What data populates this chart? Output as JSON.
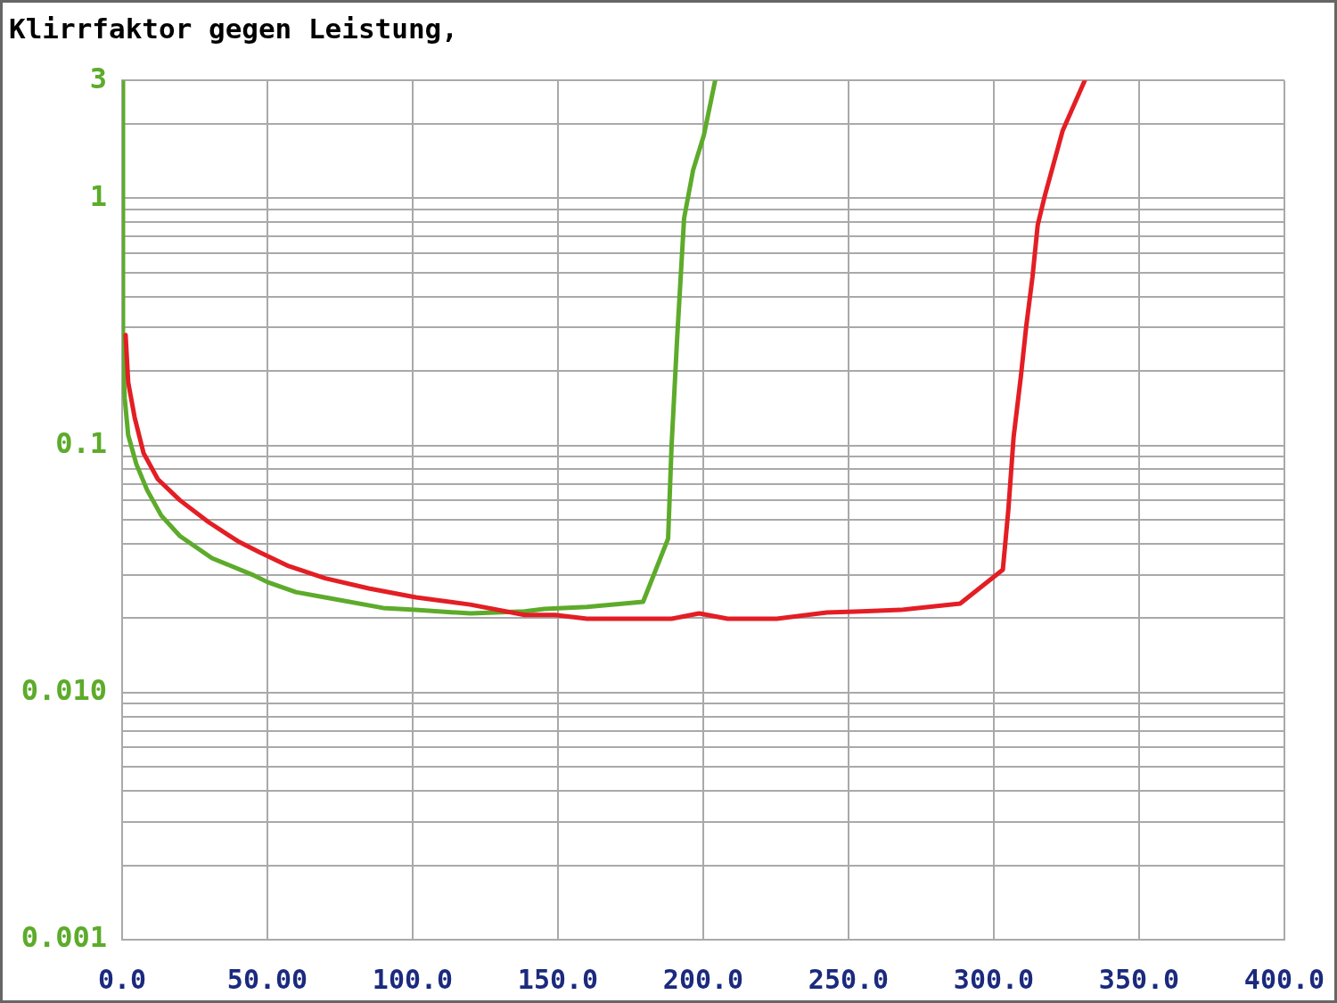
{
  "chart_data": {
    "type": "line",
    "title": "Klirrfaktor gegen Leistung,",
    "xlim": [
      0,
      400
    ],
    "xticks": [
      {
        "value": 0,
        "label": "0.0"
      },
      {
        "value": 50,
        "label": "50.00"
      },
      {
        "value": 100,
        "label": "100.0"
      },
      {
        "value": 150,
        "label": "150.0"
      },
      {
        "value": 200,
        "label": "200.0"
      },
      {
        "value": 250,
        "label": "250.0"
      },
      {
        "value": 300,
        "label": "300.0"
      },
      {
        "value": 350,
        "label": "350.0"
      },
      {
        "value": 400,
        "label": "400.0"
      }
    ],
    "ylim": [
      0.001,
      3
    ],
    "yticks": [
      0.001,
      {
        "value": 0.002,
        "label": null
      },
      {
        "value": 0.003,
        "label": null
      },
      {
        "value": 0.004,
        "label": null
      },
      {
        "value": 0.005,
        "label": null
      },
      {
        "value": 0.006,
        "label": null
      },
      {
        "value": 0.007,
        "label": null
      },
      {
        "value": 0.008,
        "label": null
      },
      {
        "value": 0.009,
        "label": null
      },
      {
        "value": 0.01,
        "label": "0.010"
      },
      {
        "value": 0.02,
        "label": null
      },
      {
        "value": 0.03,
        "label": null
      },
      {
        "value": 0.04,
        "label": null
      },
      {
        "value": 0.05,
        "label": null
      },
      {
        "value": 0.06,
        "label": null
      },
      {
        "value": 0.07,
        "label": null
      },
      {
        "value": 0.08,
        "label": null
      },
      {
        "value": 0.09,
        "label": null
      },
      0.1,
      {
        "value": 0.2,
        "label": null
      },
      {
        "value": 0.3,
        "label": null
      },
      {
        "value": 0.4,
        "label": null
      },
      {
        "value": 0.5,
        "label": null
      },
      {
        "value": 0.6,
        "label": null
      },
      {
        "value": 0.7,
        "label": null
      },
      {
        "value": 0.8,
        "label": null
      },
      {
        "value": 0.9,
        "label": null
      },
      1,
      {
        "value": 2,
        "label": null
      },
      3
    ],
    "log": "y",
    "grid": true,
    "marker": "none",
    "line_style": "solid",
    "series": [
      {
        "color": "#5dab2b",
        "x": [
          0,
          0.3,
          0.9,
          2.1,
          4.9,
          8.6,
          13.5,
          19.9,
          30.9,
          44.8,
          50,
          59.8,
          72.3,
          89.8,
          101,
          120,
          138.5,
          145.3,
          160,
          179.3,
          187.9,
          189.1,
          191,
          193.4,
          196.5,
          200.2,
          204.1
        ],
        "values": [
          3,
          0.23,
          0.155,
          0.11,
          0.084,
          0.066,
          0.052,
          0.043,
          0.035,
          0.03,
          0.028,
          0.0255,
          0.024,
          0.022,
          0.0216,
          0.0209,
          0.0213,
          0.0218,
          0.0222,
          0.0233,
          0.042,
          0.1,
          0.27,
          0.83,
          1.3,
          1.8,
          3
        ]
      },
      {
        "color": "#e31e24",
        "x": [
          1.2,
          2.1,
          4.3,
          7.4,
          12.3,
          19.9,
          29.7,
          39.8,
          47.2,
          57.3,
          69.9,
          84.9,
          101.1,
          119.8,
          138.5,
          149,
          160,
          189.1,
          198.6,
          208.4,
          225.3,
          242.5,
          254.4,
          267.9,
          288.4,
          303.1,
          305,
          306.8,
          309.3,
          311.1,
          313.3,
          315.1,
          317.5,
          323.7,
          331.3
        ],
        "values": [
          0.28,
          0.18,
          0.13,
          0.093,
          0.073,
          0.06,
          0.049,
          0.041,
          0.037,
          0.0325,
          0.029,
          0.0264,
          0.0243,
          0.0227,
          0.0206,
          0.0206,
          0.0199,
          0.0199,
          0.0209,
          0.0199,
          0.0199,
          0.0211,
          0.0213,
          0.0216,
          0.0229,
          0.0314,
          0.055,
          0.108,
          0.19,
          0.3,
          0.48,
          0.78,
          1.02,
          1.88,
          3
        ]
      }
    ]
  }
}
